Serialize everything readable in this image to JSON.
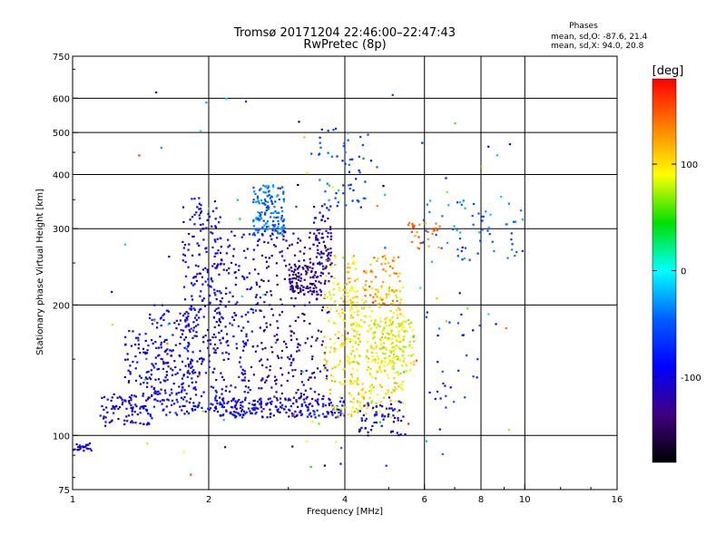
{
  "chart_data": {
    "type": "scatter",
    "title": "Tromsø 20171204 22:46:00–22:47:43",
    "subtitle": "RwPretec (8p)",
    "xlabel": "Frequency [MHz]",
    "ylabel": "Stationary phase Virtual Height [km]",
    "x_scale": "log",
    "y_scale": "log",
    "xlim": [
      1,
      16
    ],
    "ylim": [
      75,
      750
    ],
    "x_ticks": [
      1,
      2,
      4,
      6,
      8,
      10,
      16
    ],
    "x_tick_labels": [
      "1",
      "2",
      "4",
      "6",
      "8",
      "10",
      "16"
    ],
    "x_gridlines": [
      2,
      4,
      6,
      8,
      10
    ],
    "y_ticks": [
      75,
      100,
      200,
      300,
      400,
      500,
      600,
      750
    ],
    "y_tick_labels": [
      "75",
      "100",
      "200",
      "300",
      "400",
      "500",
      "600",
      "750"
    ],
    "y_gridlines": [
      100,
      200,
      300,
      400,
      500,
      600
    ],
    "grid": true,
    "stats": {
      "heading": "Phases",
      "line1": "mean, sd,O: -87.6, 21.4",
      "line2": "mean, sd,X:  94.0, 20.8"
    },
    "colorbar": {
      "label": "[deg]",
      "range": [
        -180,
        180
      ],
      "ticks": [
        100,
        0,
        -100
      ],
      "tick_labels": [
        "100",
        "0",
        "-100"
      ],
      "colors": [
        "#ff0000",
        "#ff8000",
        "#ffff00",
        "#00e000",
        "#00ffff",
        "#0060ff",
        "#0000ff",
        "#400080",
        "#000000"
      ]
    },
    "clusters": [
      {
        "f": [
          1.0,
          1.1
        ],
        "h": [
          92,
          96
        ],
        "phase": -100,
        "n": 25
      },
      {
        "f": [
          1.15,
          1.5
        ],
        "h": [
          105,
          125
        ],
        "phase": -100,
        "n": 90
      },
      {
        "f": [
          1.3,
          1.75
        ],
        "h": [
          120,
          175
        ],
        "phase": -100,
        "n": 120
      },
      {
        "f": [
          1.45,
          1.9
        ],
        "h": [
          110,
          200
        ],
        "phase": -90,
        "n": 120
      },
      {
        "f": [
          1.75,
          2.15
        ],
        "h": [
          110,
          360
        ],
        "phase": -100,
        "n": 240
      },
      {
        "f": [
          2.0,
          2.6
        ],
        "h": [
          112,
          300
        ],
        "phase": -95,
        "n": 200
      },
      {
        "f": [
          2.1,
          4.0
        ],
        "h": [
          110,
          122
        ],
        "phase": -95,
        "n": 200
      },
      {
        "f": [
          2.5,
          2.95
        ],
        "h": [
          290,
          380
        ],
        "phase": -45,
        "n": 140
      },
      {
        "f": [
          2.6,
          3.7
        ],
        "h": [
          120,
          300
        ],
        "phase": -125,
        "n": 260
      },
      {
        "f": [
          3.0,
          3.5
        ],
        "h": [
          210,
          250
        ],
        "phase": -135,
        "n": 80
      },
      {
        "f": [
          3.4,
          3.75
        ],
        "h": [
          230,
          340
        ],
        "phase": -110,
        "n": 70
      },
      {
        "f": [
          3.6,
          4.3
        ],
        "h": [
          110,
          260
        ],
        "phase": 100,
        "n": 170
      },
      {
        "f": [
          4.1,
          5.4
        ],
        "h": [
          110,
          220
        ],
        "phase": 95,
        "n": 260
      },
      {
        "f": [
          4.6,
          5.7
        ],
        "h": [
          140,
          185
        ],
        "phase": 92,
        "n": 120
      },
      {
        "f": [
          4.4,
          5.3
        ],
        "h": [
          200,
          260
        ],
        "phase": 130,
        "n": 60
      },
      {
        "f": [
          4.3,
          5.5
        ],
        "h": [
          100,
          120
        ],
        "phase": -100,
        "n": 60
      },
      {
        "f": [
          5.5,
          6.5
        ],
        "h": [
          270,
          310
        ],
        "phase": 140,
        "n": 30
      },
      {
        "f": [
          5.9,
          10.0
        ],
        "h": [
          250,
          350
        ],
        "phase": -40,
        "n": 60
      },
      {
        "f": [
          6.0,
          8.0
        ],
        "h": [
          100,
          200
        ],
        "phase": -70,
        "n": 25
      },
      {
        "f": [
          3.5,
          4.6
        ],
        "h": [
          330,
          520
        ],
        "phase": -60,
        "n": 55
      },
      {
        "f": [
          1.2,
          9.5
        ],
        "h": [
          78,
          620
        ],
        "phase": 0,
        "n": 110
      }
    ]
  }
}
